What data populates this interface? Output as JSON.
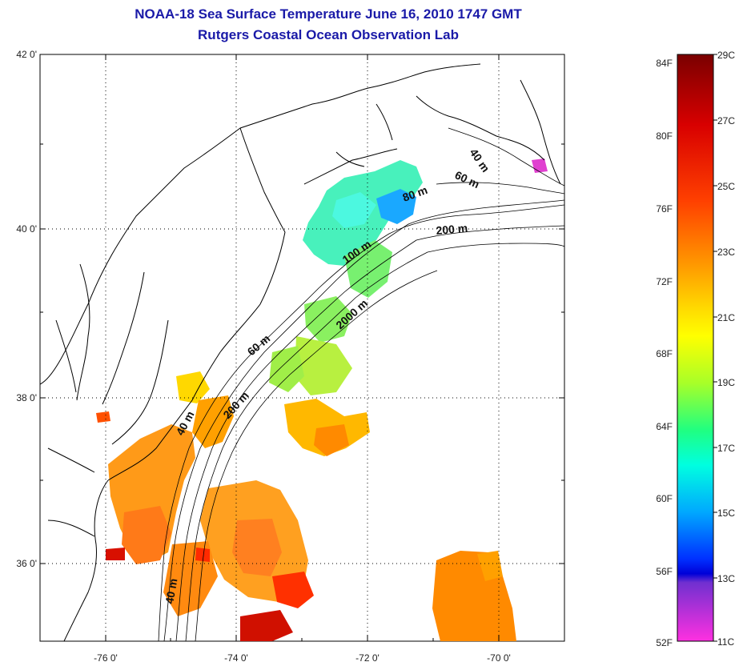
{
  "title": "NOAA-18 Sea Surface Temperature June 16, 2010 1747 GMT",
  "subtitle": "Rutgers Coastal Ocean Observation Lab",
  "map": {
    "lat_ticks": [
      "42 0'",
      "40 0'",
      "38 0'",
      "36 0'"
    ],
    "lon_ticks": [
      "-76 0'",
      "-74 0'",
      "-72 0'",
      "-70 0'"
    ],
    "lat_range": [
      35.0,
      42.0
    ],
    "lon_range": [
      -77.0,
      -69.0
    ],
    "grid": "dotted",
    "contour_labels": [
      "40 m",
      "60 m",
      "80 m",
      "200 m",
      "100 m",
      "2000 m",
      "60 m",
      "200 m",
      "40 m",
      "40 m"
    ]
  },
  "colorbar": {
    "fahrenheit_labels": [
      "84F",
      "80F",
      "76F",
      "72F",
      "68F",
      "64F",
      "60F",
      "56F",
      "52F"
    ],
    "celsius_labels": [
      "29C",
      "27C",
      "25C",
      "23C",
      "21C",
      "19C",
      "17C",
      "15C",
      "13C",
      "11C"
    ],
    "colors": [
      "#7a0000",
      "#cc0000",
      "#ff3a00",
      "#ff8a00",
      "#ffd000",
      "#ffff00",
      "#b0ff20",
      "#20ff80",
      "#00ffe0",
      "#00a8ff",
      "#0040ff",
      "#0000e0",
      "#8030d0",
      "#ff30e0"
    ]
  },
  "colors": {
    "title": "#1a1aa8",
    "coast": "#000000"
  }
}
